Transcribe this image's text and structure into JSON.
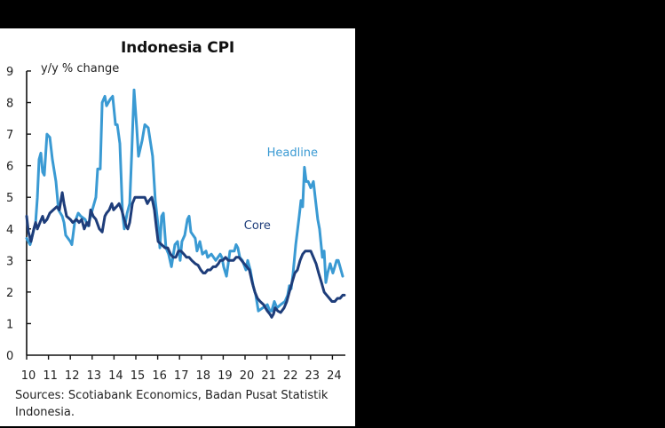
{
  "chart_data": {
    "type": "line",
    "title": "Indonesia CPI",
    "ylabel": "y/y % change",
    "xlabel": "",
    "ylim": [
      0,
      9
    ],
    "yticks": [
      0,
      1,
      2,
      3,
      4,
      5,
      6,
      7,
      8,
      9
    ],
    "xlim": [
      2010,
      2024.6
    ],
    "xticks": [
      2010,
      2011,
      2012,
      2013,
      2014,
      2015,
      2016,
      2017,
      2018,
      2019,
      2020,
      2021,
      2022,
      2023,
      2024
    ],
    "xtick_labels": [
      "10",
      "11",
      "12",
      "13",
      "14",
      "15",
      "16",
      "17",
      "18",
      "19",
      "20",
      "21",
      "22",
      "23",
      "24"
    ],
    "grid": false,
    "legend": "inline labels",
    "series": [
      {
        "name": "Headline",
        "color": "#3a9ad3",
        "label_pos": [
          2021.0,
          6.3
        ],
        "points": [
          [
            2010.0,
            3.7
          ],
          [
            2010.16,
            3.5
          ],
          [
            2010.41,
            4.2
          ],
          [
            2010.49,
            5.0
          ],
          [
            2010.57,
            6.2
          ],
          [
            2010.65,
            6.4
          ],
          [
            2010.73,
            5.8
          ],
          [
            2010.81,
            5.7
          ],
          [
            2010.93,
            7.0
          ],
          [
            2011.06,
            6.9
          ],
          [
            2011.18,
            6.2
          ],
          [
            2011.34,
            5.5
          ],
          [
            2011.46,
            4.6
          ],
          [
            2011.63,
            4.4
          ],
          [
            2011.71,
            4.2
          ],
          [
            2011.79,
            3.8
          ],
          [
            2012.0,
            3.6
          ],
          [
            2012.07,
            3.5
          ],
          [
            2012.2,
            4.2
          ],
          [
            2012.36,
            4.5
          ],
          [
            2012.48,
            4.4
          ],
          [
            2012.68,
            4.3
          ],
          [
            2012.81,
            4.1
          ],
          [
            2012.89,
            4.3
          ],
          [
            2013.01,
            4.6
          ],
          [
            2013.17,
            5.0
          ],
          [
            2013.25,
            5.9
          ],
          [
            2013.37,
            5.9
          ],
          [
            2013.46,
            8.0
          ],
          [
            2013.58,
            8.2
          ],
          [
            2013.66,
            7.9
          ],
          [
            2013.82,
            8.1
          ],
          [
            2013.94,
            8.2
          ],
          [
            2014.07,
            7.3
          ],
          [
            2014.15,
            7.3
          ],
          [
            2014.27,
            6.7
          ],
          [
            2014.39,
            4.5
          ],
          [
            2014.47,
            4.0
          ],
          [
            2014.6,
            4.5
          ],
          [
            2014.72,
            4.8
          ],
          [
            2014.8,
            6.2
          ],
          [
            2014.92,
            8.4
          ],
          [
            2015.04,
            7.2
          ],
          [
            2015.12,
            6.3
          ],
          [
            2015.29,
            6.8
          ],
          [
            2015.41,
            7.3
          ],
          [
            2015.57,
            7.2
          ],
          [
            2015.77,
            6.3
          ],
          [
            2015.89,
            4.9
          ],
          [
            2016.02,
            4.1
          ],
          [
            2016.1,
            3.4
          ],
          [
            2016.18,
            4.4
          ],
          [
            2016.26,
            4.5
          ],
          [
            2016.38,
            3.4
          ],
          [
            2016.5,
            3.2
          ],
          [
            2016.63,
            2.8
          ],
          [
            2016.79,
            3.5
          ],
          [
            2016.91,
            3.6
          ],
          [
            2017.03,
            3.0
          ],
          [
            2017.11,
            3.6
          ],
          [
            2017.24,
            3.8
          ],
          [
            2017.36,
            4.3
          ],
          [
            2017.44,
            4.4
          ],
          [
            2017.52,
            3.9
          ],
          [
            2017.72,
            3.7
          ],
          [
            2017.8,
            3.3
          ],
          [
            2017.93,
            3.6
          ],
          [
            2018.05,
            3.2
          ],
          [
            2018.21,
            3.3
          ],
          [
            2018.29,
            3.1
          ],
          [
            2018.46,
            3.2
          ],
          [
            2018.66,
            3.0
          ],
          [
            2018.86,
            3.2
          ],
          [
            2018.94,
            3.1
          ],
          [
            2019.02,
            2.8
          ],
          [
            2019.15,
            2.5
          ],
          [
            2019.31,
            3.3
          ],
          [
            2019.51,
            3.3
          ],
          [
            2019.59,
            3.5
          ],
          [
            2019.67,
            3.4
          ],
          [
            2019.76,
            3.1
          ],
          [
            2019.88,
            3.0
          ],
          [
            2020.04,
            2.7
          ],
          [
            2020.12,
            3.0
          ],
          [
            2020.24,
            2.7
          ],
          [
            2020.37,
            2.2
          ],
          [
            2020.49,
            1.9
          ],
          [
            2020.61,
            1.4
          ],
          [
            2020.81,
            1.5
          ],
          [
            2021.02,
            1.6
          ],
          [
            2021.14,
            1.4
          ],
          [
            2021.22,
            1.4
          ],
          [
            2021.34,
            1.7
          ],
          [
            2021.46,
            1.5
          ],
          [
            2021.63,
            1.6
          ],
          [
            2021.83,
            1.7
          ],
          [
            2021.95,
            1.9
          ],
          [
            2022.03,
            2.2
          ],
          [
            2022.11,
            2.1
          ],
          [
            2022.2,
            2.6
          ],
          [
            2022.32,
            3.5
          ],
          [
            2022.48,
            4.4
          ],
          [
            2022.56,
            4.9
          ],
          [
            2022.64,
            4.7
          ],
          [
            2022.72,
            5.95
          ],
          [
            2022.8,
            5.5
          ],
          [
            2022.89,
            5.5
          ],
          [
            2023.01,
            5.3
          ],
          [
            2023.13,
            5.5
          ],
          [
            2023.21,
            5.0
          ],
          [
            2023.33,
            4.3
          ],
          [
            2023.41,
            4.0
          ],
          [
            2023.54,
            3.1
          ],
          [
            2023.62,
            3.3
          ],
          [
            2023.7,
            2.3
          ],
          [
            2023.78,
            2.6
          ],
          [
            2023.9,
            2.9
          ],
          [
            2024.02,
            2.6
          ],
          [
            2024.11,
            2.8
          ],
          [
            2024.19,
            3.0
          ],
          [
            2024.27,
            3.0
          ],
          [
            2024.35,
            2.8
          ],
          [
            2024.47,
            2.5
          ]
        ]
      },
      {
        "name": "Core",
        "color": "#1e3d7a",
        "label_pos": [
          2019.95,
          4.0
        ],
        "points": [
          [
            2010.0,
            4.4
          ],
          [
            2010.08,
            3.9
          ],
          [
            2010.2,
            3.6
          ],
          [
            2010.33,
            4.0
          ],
          [
            2010.41,
            4.2
          ],
          [
            2010.49,
            4.0
          ],
          [
            2010.61,
            4.2
          ],
          [
            2010.73,
            4.4
          ],
          [
            2010.81,
            4.2
          ],
          [
            2010.93,
            4.3
          ],
          [
            2011.06,
            4.5
          ],
          [
            2011.22,
            4.6
          ],
          [
            2011.38,
            4.7
          ],
          [
            2011.5,
            4.6
          ],
          [
            2011.63,
            5.15
          ],
          [
            2011.71,
            4.8
          ],
          [
            2011.83,
            4.4
          ],
          [
            2012.0,
            4.3
          ],
          [
            2012.11,
            4.2
          ],
          [
            2012.28,
            4.3
          ],
          [
            2012.4,
            4.2
          ],
          [
            2012.52,
            4.3
          ],
          [
            2012.64,
            4.0
          ],
          [
            2012.76,
            4.2
          ],
          [
            2012.85,
            4.1
          ],
          [
            2012.93,
            4.6
          ],
          [
            2013.05,
            4.4
          ],
          [
            2013.17,
            4.3
          ],
          [
            2013.33,
            4.0
          ],
          [
            2013.46,
            3.9
          ],
          [
            2013.58,
            4.4
          ],
          [
            2013.66,
            4.5
          ],
          [
            2013.78,
            4.6
          ],
          [
            2013.9,
            4.8
          ],
          [
            2013.98,
            4.6
          ],
          [
            2014.11,
            4.7
          ],
          [
            2014.23,
            4.8
          ],
          [
            2014.35,
            4.6
          ],
          [
            2014.47,
            4.3
          ],
          [
            2014.55,
            4.1
          ],
          [
            2014.63,
            4.0
          ],
          [
            2014.72,
            4.2
          ],
          [
            2014.84,
            4.8
          ],
          [
            2014.96,
            5.0
          ],
          [
            2015.12,
            5.0
          ],
          [
            2015.28,
            5.0
          ],
          [
            2015.41,
            5.0
          ],
          [
            2015.53,
            4.8
          ],
          [
            2015.61,
            4.9
          ],
          [
            2015.73,
            5.0
          ],
          [
            2015.85,
            4.6
          ],
          [
            2015.93,
            4.1
          ],
          [
            2016.02,
            3.6
          ],
          [
            2016.18,
            3.5
          ],
          [
            2016.34,
            3.4
          ],
          [
            2016.46,
            3.4
          ],
          [
            2016.59,
            3.2
          ],
          [
            2016.71,
            3.1
          ],
          [
            2016.83,
            3.1
          ],
          [
            2016.95,
            3.3
          ],
          [
            2017.07,
            3.3
          ],
          [
            2017.2,
            3.2
          ],
          [
            2017.32,
            3.1
          ],
          [
            2017.44,
            3.1
          ],
          [
            2017.56,
            3.0
          ],
          [
            2017.72,
            2.9
          ],
          [
            2017.85,
            2.85
          ],
          [
            2017.97,
            2.7
          ],
          [
            2018.09,
            2.6
          ],
          [
            2018.17,
            2.6
          ],
          [
            2018.29,
            2.7
          ],
          [
            2018.41,
            2.7
          ],
          [
            2018.54,
            2.8
          ],
          [
            2018.66,
            2.8
          ],
          [
            2018.78,
            2.9
          ],
          [
            2018.86,
            3.0
          ],
          [
            2018.98,
            3.0
          ],
          [
            2019.11,
            3.1
          ],
          [
            2019.23,
            3.0
          ],
          [
            2019.35,
            3.0
          ],
          [
            2019.47,
            3.0
          ],
          [
            2019.59,
            3.1
          ],
          [
            2019.72,
            3.1
          ],
          [
            2019.84,
            3.0
          ],
          [
            2019.96,
            2.9
          ],
          [
            2020.08,
            2.8
          ],
          [
            2020.2,
            2.7
          ],
          [
            2020.33,
            2.3
          ],
          [
            2020.45,
            2.0
          ],
          [
            2020.57,
            1.8
          ],
          [
            2020.69,
            1.7
          ],
          [
            2020.85,
            1.6
          ],
          [
            2021.02,
            1.4
          ],
          [
            2021.14,
            1.3
          ],
          [
            2021.22,
            1.2
          ],
          [
            2021.3,
            1.3
          ],
          [
            2021.38,
            1.5
          ],
          [
            2021.5,
            1.4
          ],
          [
            2021.63,
            1.35
          ],
          [
            2021.79,
            1.5
          ],
          [
            2021.91,
            1.7
          ],
          [
            2022.03,
            2.0
          ],
          [
            2022.15,
            2.3
          ],
          [
            2022.28,
            2.6
          ],
          [
            2022.4,
            2.7
          ],
          [
            2022.52,
            3.0
          ],
          [
            2022.64,
            3.2
          ],
          [
            2022.76,
            3.3
          ],
          [
            2022.89,
            3.3
          ],
          [
            2023.01,
            3.3
          ],
          [
            2023.13,
            3.1
          ],
          [
            2023.25,
            2.9
          ],
          [
            2023.37,
            2.6
          ],
          [
            2023.5,
            2.3
          ],
          [
            2023.62,
            2.0
          ],
          [
            2023.74,
            1.9
          ],
          [
            2023.86,
            1.8
          ],
          [
            2023.98,
            1.7
          ],
          [
            2024.11,
            1.7
          ],
          [
            2024.23,
            1.8
          ],
          [
            2024.35,
            1.8
          ],
          [
            2024.47,
            1.9
          ],
          [
            2024.55,
            1.9
          ]
        ]
      }
    ]
  },
  "source_note": "Sources: Scotiabank Economics, Badan Pusat Statistik Indonesia."
}
